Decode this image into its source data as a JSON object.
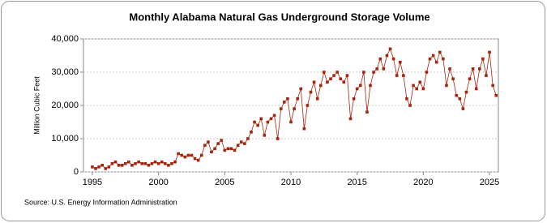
{
  "chart_data": {
    "type": "line",
    "title": "Monthly Alabama Natural Gas Underground Storage Volume",
    "y_label": "Million Cubic Feet",
    "source": "Source: U.S. Energy Information Administration",
    "x": [
      1995,
      1995.25,
      1995.5,
      1995.75,
      1996,
      1996.25,
      1996.5,
      1996.75,
      1997,
      1997.25,
      1997.5,
      1997.75,
      1998,
      1998.25,
      1998.5,
      1998.75,
      1999,
      1999.25,
      1999.5,
      1999.75,
      2000,
      2000.25,
      2000.5,
      2000.75,
      2001,
      2001.25,
      2001.5,
      2001.75,
      2002,
      2002.25,
      2002.5,
      2002.75,
      2003,
      2003.25,
      2003.5,
      2003.75,
      2004,
      2004.25,
      2004.5,
      2004.75,
      2005,
      2005.25,
      2005.5,
      2005.75,
      2006,
      2006.25,
      2006.5,
      2006.75,
      2007,
      2007.25,
      2007.5,
      2007.75,
      2008,
      2008.25,
      2008.5,
      2008.75,
      2009,
      2009.25,
      2009.5,
      2009.75,
      2010,
      2010.25,
      2010.5,
      2010.75,
      2011,
      2011.25,
      2011.5,
      2011.75,
      2012,
      2012.25,
      2012.5,
      2012.75,
      2013,
      2013.25,
      2013.5,
      2013.75,
      2014,
      2014.25,
      2014.5,
      2014.75,
      2015,
      2015.25,
      2015.5,
      2015.75,
      2016,
      2016.25,
      2016.5,
      2016.75,
      2017,
      2017.25,
      2017.5,
      2017.75,
      2018,
      2018.25,
      2018.5,
      2018.75,
      2019,
      2019.25,
      2019.5,
      2019.75,
      2020,
      2020.25,
      2020.5,
      2020.75,
      2021,
      2021.25,
      2021.5,
      2021.75,
      2022,
      2022.25,
      2022.5,
      2022.75,
      2023,
      2023.25,
      2023.5,
      2023.75,
      2024,
      2024.25,
      2024.5,
      2024.75,
      2025,
      2025.25,
      2025.5
    ],
    "series": [
      {
        "name": "Storage volume",
        "color": "#a3260f",
        "values": [
          1500,
          1000,
          1500,
          2000,
          1000,
          1500,
          2500,
          3000,
          2000,
          2000,
          2500,
          3000,
          2000,
          2500,
          3000,
          2500,
          2500,
          2000,
          2500,
          3000,
          2500,
          3000,
          2500,
          2000,
          2500,
          3000,
          5500,
          5000,
          4500,
          5000,
          5000,
          4000,
          3500,
          5000,
          8000,
          9000,
          6000,
          7000,
          8500,
          9500,
          6500,
          7000,
          7000,
          6500,
          8000,
          9000,
          8500,
          10000,
          12000,
          15000,
          14000,
          16000,
          11000,
          15000,
          16000,
          17000,
          10000,
          19000,
          21000,
          22000,
          15000,
          19000,
          22000,
          25000,
          13000,
          20000,
          24000,
          27000,
          22000,
          26000,
          30000,
          27000,
          28000,
          29000,
          30000,
          28000,
          27000,
          29000,
          16000,
          22000,
          25000,
          26000,
          30000,
          18000,
          26000,
          30000,
          31000,
          34000,
          31000,
          35000,
          37000,
          34000,
          29000,
          33000,
          29000,
          22000,
          20000,
          26000,
          25000,
          27000,
          25000,
          30000,
          34000,
          35000,
          33000,
          36000,
          34000,
          26000,
          31000,
          28000,
          23000,
          22000,
          19000,
          24000,
          28000,
          31000,
          25000,
          31000,
          34000,
          29000,
          36000,
          26000,
          23000
        ]
      }
    ],
    "xlim": [
      1994.33,
      2025.67
    ],
    "xticks": [
      1995,
      2000,
      2005,
      2010,
      2015,
      2020,
      2025
    ],
    "ylim": [
      0,
      40000
    ],
    "yticks": [
      0,
      {
        "value": 10000,
        "label": "10,000"
      },
      {
        "value": 20000,
        "label": "20,000"
      },
      {
        "value": 30000,
        "label": "30,000"
      },
      {
        "value": 40000,
        "label": "40,000"
      }
    ],
    "grid": true
  }
}
